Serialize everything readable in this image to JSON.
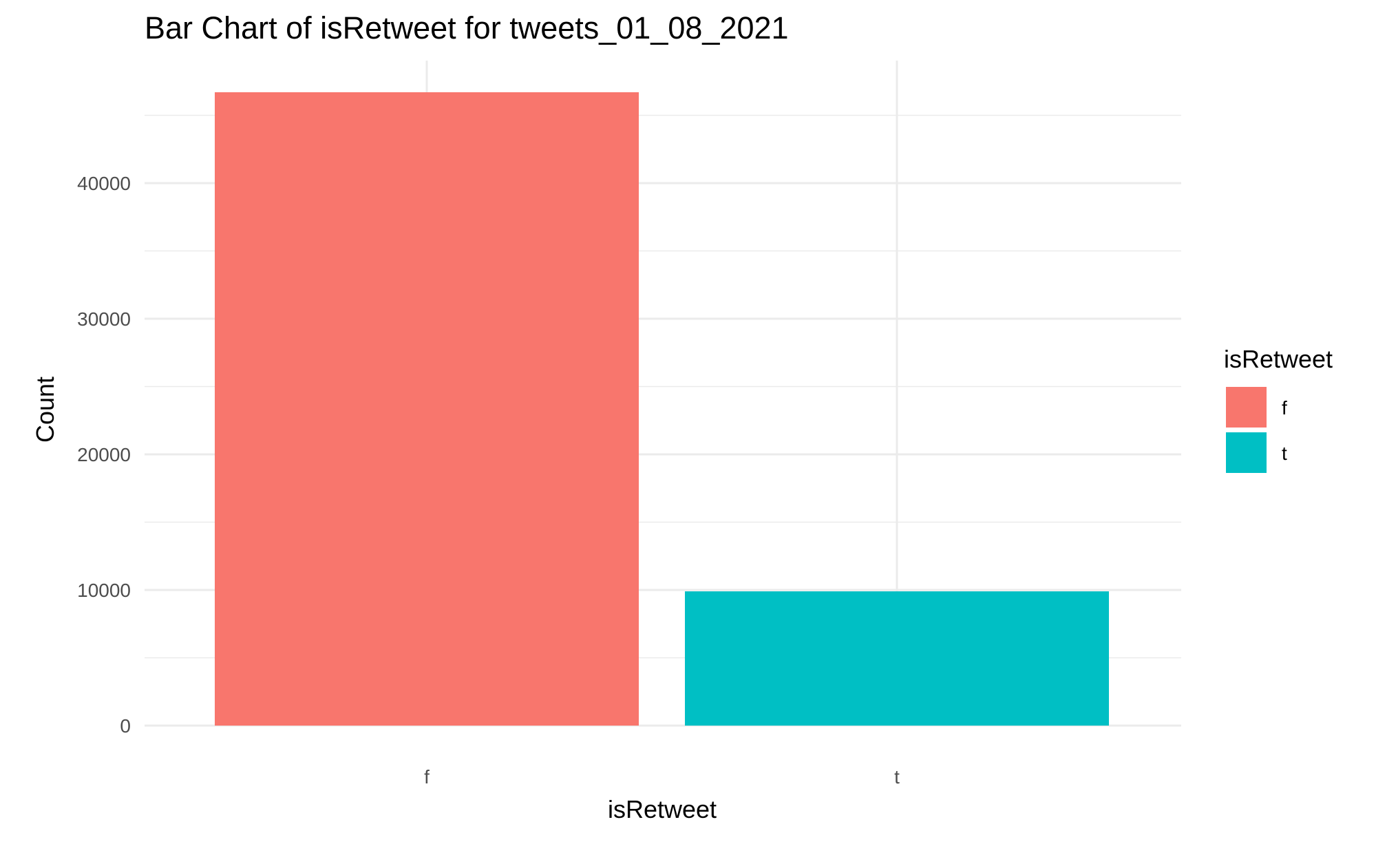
{
  "chart_data": {
    "type": "bar",
    "title": "Bar Chart of isRetweet for tweets_01_08_2021",
    "xlabel": "isRetweet",
    "ylabel": "Count",
    "categories": [
      "f",
      "t"
    ],
    "values": [
      46700,
      9900
    ],
    "colors": [
      "#F8766D",
      "#00BFC4"
    ],
    "ylim": [
      0,
      50000
    ],
    "yticks": [
      0,
      10000,
      20000,
      30000,
      40000
    ],
    "ytick_labels": [
      "0",
      "10000",
      "20000",
      "30000",
      "40000"
    ],
    "grid": true,
    "legend": {
      "title": "isRetweet",
      "placement": "right",
      "items": [
        {
          "label": "f",
          "color": "#F8766D"
        },
        {
          "label": "t",
          "color": "#00BFC4"
        }
      ]
    }
  }
}
